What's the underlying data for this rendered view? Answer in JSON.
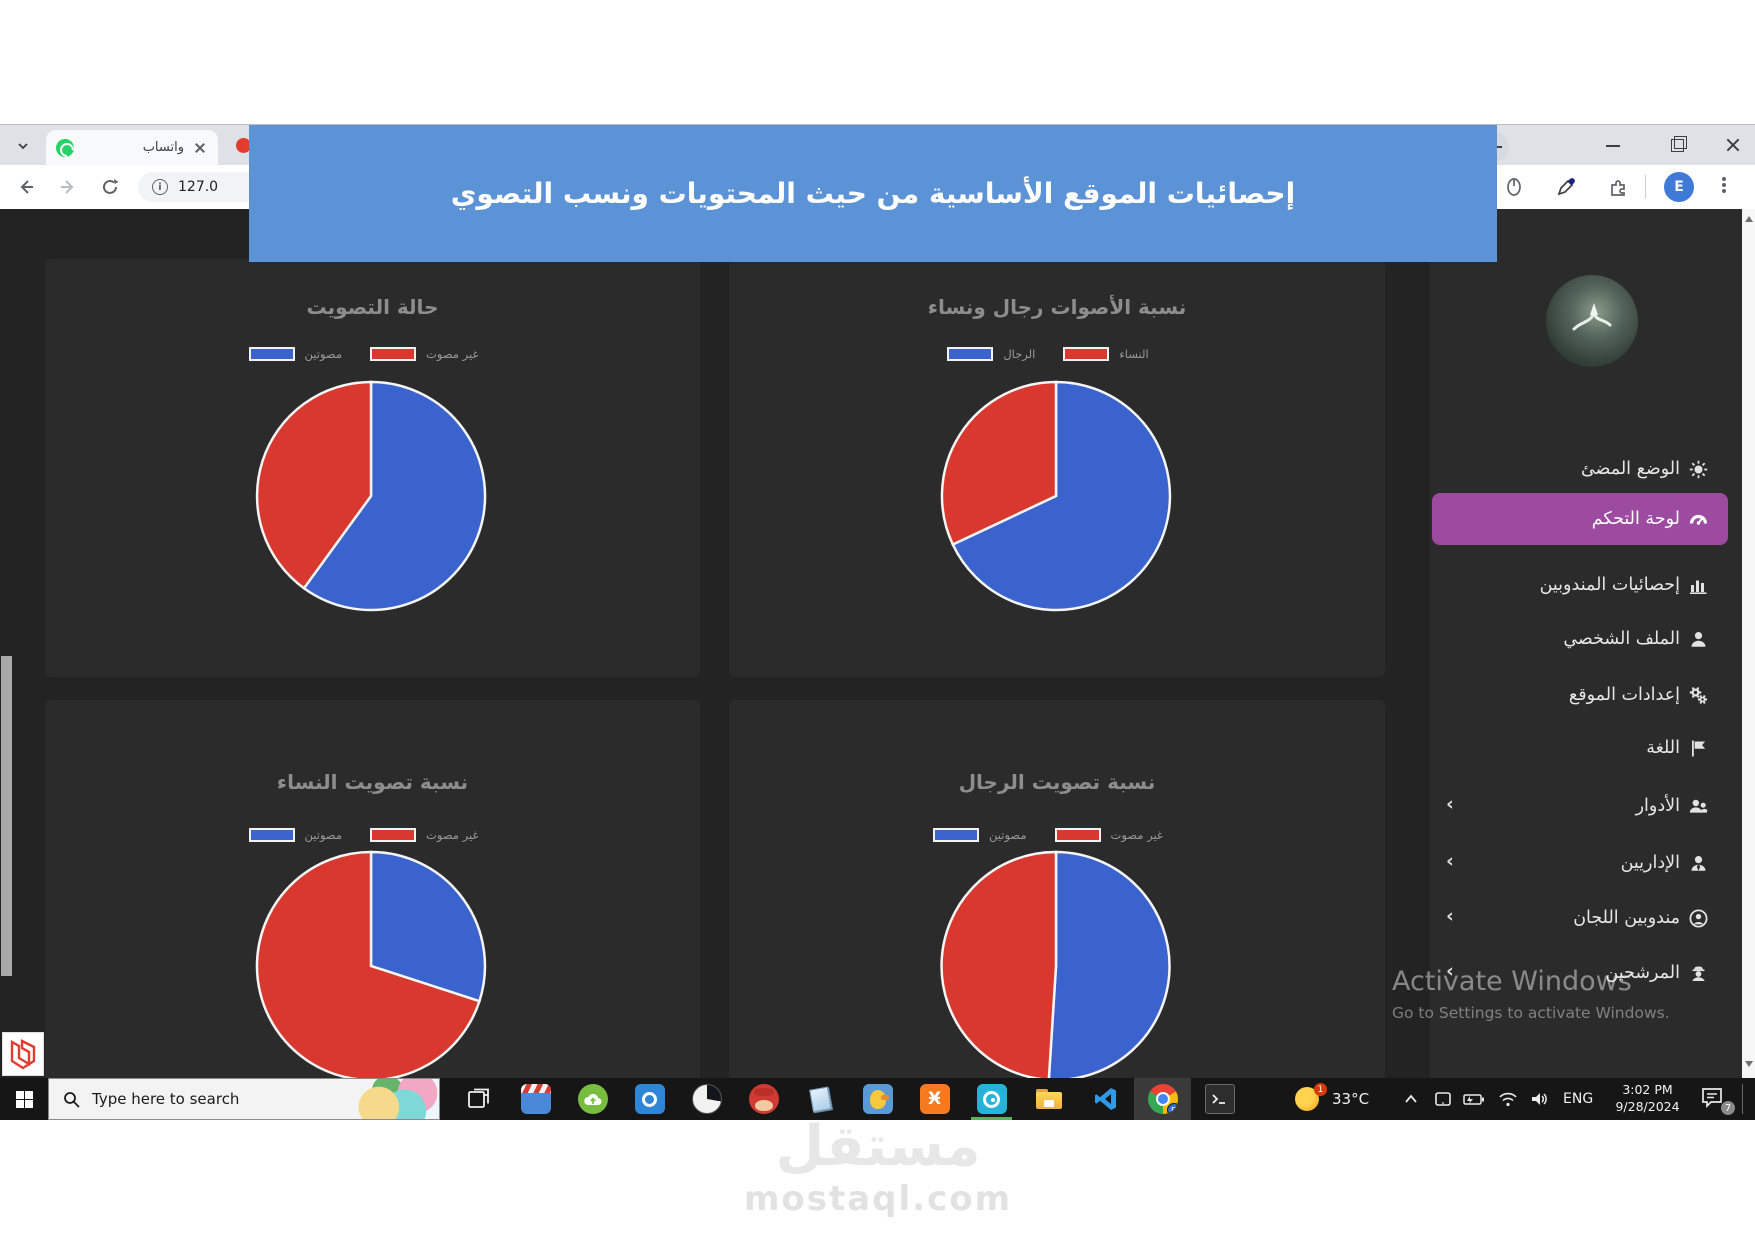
{
  "browser": {
    "tab_title": "واتساب",
    "url": "127.0",
    "profile_initial": "E"
  },
  "banner": {
    "text": "إحصائيات الموقع الأساسية من حيث المحتويات ونسب التصوي",
    "bg_color": "#5b93d6"
  },
  "chart_data": [
    {
      "type": "pie",
      "title": "حالة التصويت",
      "labels": [
        "مصوتين",
        "غير مصوت"
      ],
      "values": [
        60,
        40
      ],
      "colors": [
        "#3a63cd",
        "#d9382e"
      ],
      "legend_position": "top"
    },
    {
      "type": "pie",
      "title": "نسبة الأصوات رجال ونساء",
      "labels": [
        "الرجال",
        "النساء"
      ],
      "values": [
        68,
        32
      ],
      "colors": [
        "#3a63cd",
        "#d9382e"
      ],
      "legend_position": "top"
    },
    {
      "type": "pie",
      "title": "نسبة تصويت النساء",
      "labels": [
        "مصوتين",
        "غير مصوت"
      ],
      "values": [
        30,
        70
      ],
      "colors": [
        "#3a63cd",
        "#d9382e"
      ],
      "legend_position": "top"
    },
    {
      "type": "pie",
      "title": "نسبة تصويت الرجال",
      "labels": [
        "مصوتين",
        "غير مصوت"
      ],
      "values": [
        51,
        49
      ],
      "colors": [
        "#3a63cd",
        "#d9382e"
      ],
      "legend_position": "top"
    }
  ],
  "sidebar": {
    "accent_color": "#9c4ba0",
    "items": [
      {
        "id": "light-mode",
        "label": "الوضع المضئ",
        "icon": "sun",
        "active": false,
        "chevron": false
      },
      {
        "id": "dashboard",
        "label": "لوحة التحكم",
        "icon": "gauge",
        "active": true,
        "chevron": false
      },
      {
        "id": "delegates-stats",
        "label": "إحصائيات المندوبين",
        "icon": "bars",
        "active": false,
        "chevron": false
      },
      {
        "id": "profile",
        "label": "الملف الشخصي",
        "icon": "user",
        "active": false,
        "chevron": false
      },
      {
        "id": "site-settings",
        "label": "إعدادات الموقع",
        "icon": "gears",
        "active": false,
        "chevron": false
      },
      {
        "id": "language",
        "label": "اللغة",
        "icon": "flag",
        "active": false,
        "chevron": false
      },
      {
        "id": "roles",
        "label": "الأدوار",
        "icon": "users",
        "active": false,
        "chevron": true
      },
      {
        "id": "admins",
        "label": "الإداريين",
        "icon": "user-tie",
        "active": false,
        "chevron": true
      },
      {
        "id": "committee-delegates",
        "label": "مندوبين اللجان",
        "icon": "user-circle",
        "active": false,
        "chevron": true
      },
      {
        "id": "candidates",
        "label": "المرشحين",
        "icon": "user-secret",
        "active": false,
        "chevron": true
      }
    ]
  },
  "activate_watermark": {
    "title": "Activate Windows",
    "subtitle": "Go to Settings to activate Windows."
  },
  "taskbar": {
    "search_placeholder": "Type here to search",
    "apps": [
      {
        "id": "task-view"
      },
      {
        "id": "movie-clapper"
      },
      {
        "id": "cloud-app"
      },
      {
        "id": "camera-app"
      },
      {
        "id": "storage-pie"
      },
      {
        "id": "mario"
      },
      {
        "id": "notes"
      },
      {
        "id": "duck-app"
      },
      {
        "id": "xampp"
      },
      {
        "id": "video-editor",
        "active": true
      },
      {
        "id": "file-explorer"
      },
      {
        "id": "vscode"
      },
      {
        "id": "chrome",
        "highlighted": true
      },
      {
        "id": "terminal"
      }
    ],
    "tray": {
      "temperature": "33°C",
      "weather_badge": "1",
      "language": "ENG",
      "time": "3:02 PM",
      "date": "9/28/2024",
      "notification_count": "7"
    }
  },
  "watermark": {
    "logo_arabic": "مستقل",
    "domain": "mostaql.com"
  }
}
